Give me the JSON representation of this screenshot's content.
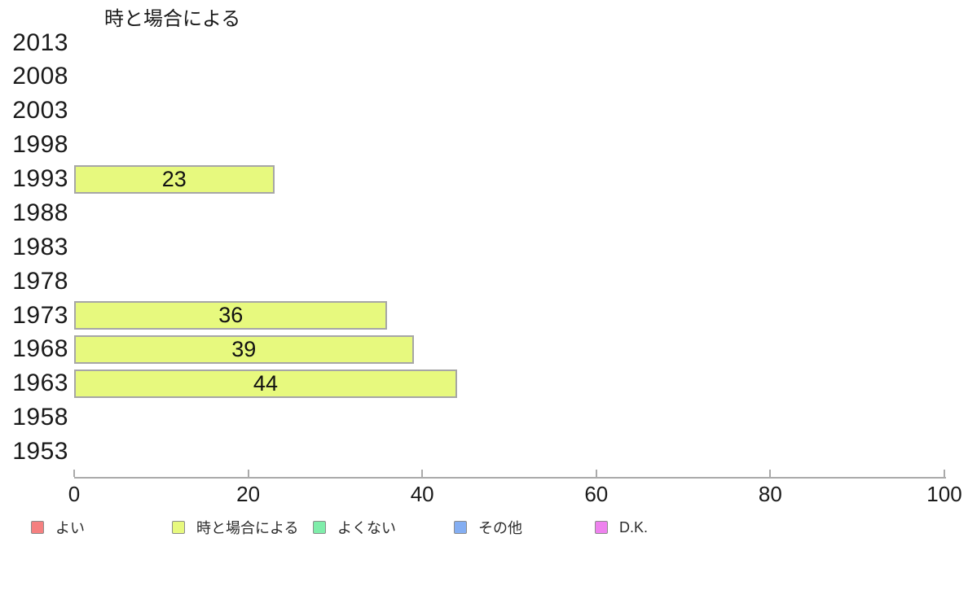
{
  "chart_data": {
    "type": "bar",
    "orientation": "horizontal",
    "title": "時と場合による",
    "categories": [
      "2013",
      "2008",
      "2003",
      "1998",
      "1993",
      "1988",
      "1983",
      "1978",
      "1973",
      "1968",
      "1963",
      "1958",
      "1953"
    ],
    "series": [
      {
        "name": "よい",
        "color": "#f58080",
        "values": [
          null,
          null,
          null,
          null,
          null,
          null,
          null,
          null,
          null,
          null,
          null,
          null,
          null
        ]
      },
      {
        "name": "時と場合による",
        "color": "#e7f97e",
        "values": [
          null,
          null,
          null,
          null,
          23,
          null,
          null,
          null,
          36,
          39,
          44,
          null,
          null
        ]
      },
      {
        "name": "よくない",
        "color": "#7fedaa",
        "values": [
          null,
          null,
          null,
          null,
          null,
          null,
          null,
          null,
          null,
          null,
          null,
          null,
          null
        ]
      },
      {
        "name": "その他",
        "color": "#84aef2",
        "values": [
          null,
          null,
          null,
          null,
          null,
          null,
          null,
          null,
          null,
          null,
          null,
          null,
          null
        ]
      },
      {
        "name": "D.K.",
        "color": "#ee82ee",
        "values": [
          null,
          null,
          null,
          null,
          null,
          null,
          null,
          null,
          null,
          null,
          null,
          null,
          null
        ]
      }
    ],
    "bar_value_labels": true,
    "xlabel": "",
    "ylabel": "",
    "xlim": [
      0,
      100
    ],
    "xticks": [
      0,
      20,
      40,
      60,
      80,
      100
    ],
    "grid": false,
    "legend_position": "bottom",
    "axis_color": "#aaaaaa"
  }
}
